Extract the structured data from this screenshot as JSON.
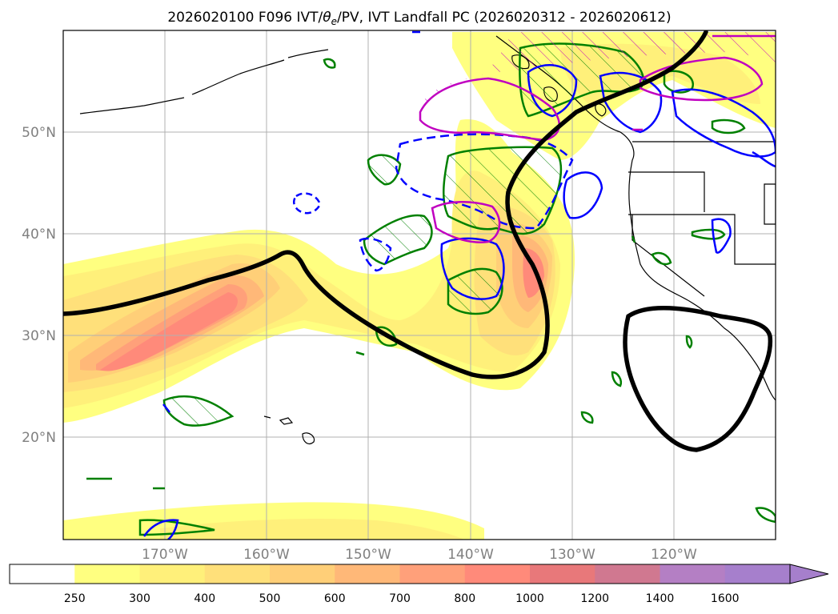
{
  "figure": {
    "title_main": "2026020100 F096 IVT/",
    "title_theta": "θ",
    "title_sub": "e",
    "title_rest": "/PV, IVT Landfall PC (2026020312 - 2026020612)"
  },
  "map": {
    "lon_range": [
      -180,
      -110
    ],
    "lat_range": [
      10,
      60
    ],
    "gridlines": true,
    "lon_ticks": [
      {
        "value": -170,
        "label": "170°W"
      },
      {
        "value": -160,
        "label": "160°W"
      },
      {
        "value": -150,
        "label": "150°W"
      },
      {
        "value": -140,
        "label": "140°W"
      },
      {
        "value": -130,
        "label": "130°W"
      },
      {
        "value": -120,
        "label": "120°W"
      }
    ],
    "lat_ticks": [
      {
        "value": 50,
        "label": "50°N"
      },
      {
        "value": 40,
        "label": "40°N"
      },
      {
        "value": 30,
        "label": "30°N"
      },
      {
        "value": 20,
        "label": "20°N"
      }
    ],
    "colors": {
      "coast": "#000000",
      "grid": "#b0b0b0",
      "theta_e": "#008000",
      "pv": "#0000ff",
      "landfall": "#c000c0",
      "ivt_contour": "#000000"
    }
  },
  "colorbar": {
    "levels": [
      "250",
      "300",
      "400",
      "500",
      "600",
      "700",
      "800",
      "1000",
      "1200",
      "1400",
      "1600"
    ],
    "colors": [
      "#ffffff",
      "#ffff80",
      "#fff07a",
      "#ffe07a",
      "#ffcf78",
      "#ffb878",
      "#ffa07a",
      "#ff8a7a",
      "#e8787a",
      "#d07890",
      "#b47fc4",
      "#a67fcc"
    ],
    "extend": "max"
  },
  "chart_data": {
    "type": "heatmap",
    "variable": "IVT",
    "levels": [
      250,
      300,
      400,
      500,
      600,
      700,
      800,
      1000,
      1200,
      1400,
      1600
    ],
    "xlim": [
      -180,
      -110
    ],
    "ylim": [
      10,
      60
    ]
  }
}
